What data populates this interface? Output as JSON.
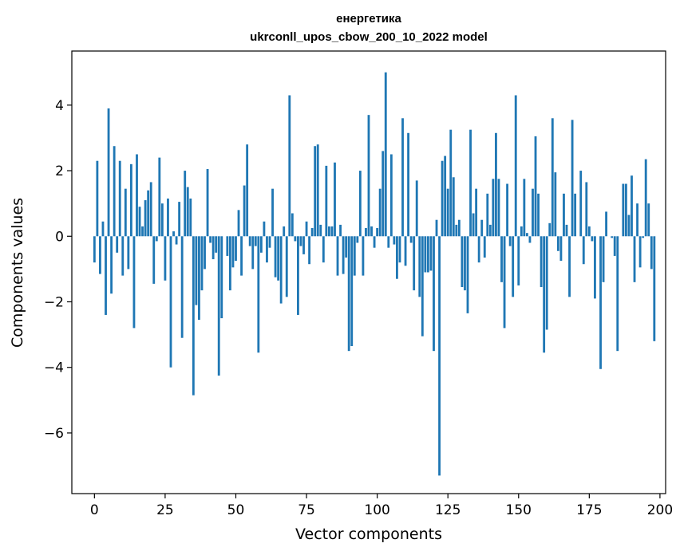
{
  "chart_data": {
    "type": "bar",
    "title_line1": "енергетика",
    "title_line2": "ukrconll_upos_cbow_200_10_2022 model",
    "xlabel": "Vector components",
    "ylabel": "Components values",
    "xlim": [
      -8,
      202
    ],
    "ylim": [
      -7.85,
      5.65
    ],
    "xticks": [
      0,
      25,
      50,
      75,
      100,
      125,
      150,
      175,
      200
    ],
    "yticks": [
      -6,
      -4,
      -2,
      0,
      2,
      4
    ],
    "ytick_labels": [
      "−6",
      "−4",
      "−2",
      "0",
      "2",
      "4"
    ],
    "bar_color": "#1f77b4",
    "values": [
      -0.8,
      2.3,
      -1.15,
      0.45,
      -2.4,
      3.9,
      -1.75,
      2.75,
      -0.5,
      2.3,
      -1.2,
      1.45,
      -1.0,
      2.2,
      -2.8,
      2.5,
      0.9,
      0.3,
      1.1,
      1.4,
      1.65,
      -1.45,
      -0.15,
      2.4,
      1.0,
      -1.35,
      1.15,
      -4.0,
      0.15,
      -0.25,
      1.05,
      -3.1,
      2.0,
      1.5,
      1.15,
      -4.85,
      -2.1,
      -2.55,
      -1.65,
      -1.0,
      2.05,
      -0.2,
      -0.7,
      -0.5,
      -4.25,
      -2.5,
      0.0,
      -0.6,
      -1.65,
      -0.95,
      -0.75,
      0.8,
      -1.2,
      1.55,
      2.8,
      -0.3,
      -1.0,
      -0.3,
      -3.55,
      -0.5,
      0.45,
      -0.8,
      -0.35,
      1.45,
      -1.25,
      -1.35,
      -2.05,
      0.3,
      -1.85,
      4.3,
      0.7,
      -0.15,
      -2.4,
      -0.3,
      -0.55,
      0.45,
      -0.85,
      0.25,
      2.75,
      2.8,
      0.35,
      -0.8,
      2.15,
      0.3,
      0.3,
      2.25,
      -1.2,
      0.35,
      -1.15,
      -0.65,
      -3.5,
      -3.35,
      -1.2,
      -0.2,
      2.0,
      -1.2,
      0.25,
      3.7,
      0.3,
      -0.35,
      0.25,
      1.45,
      2.6,
      5.0,
      -0.35,
      2.5,
      -0.25,
      -1.3,
      -0.8,
      3.6,
      -0.9,
      3.15,
      -0.2,
      -1.65,
      1.7,
      -1.85,
      -3.05,
      -1.1,
      -1.1,
      -1.05,
      -3.5,
      0.5,
      -7.3,
      2.3,
      2.45,
      1.45,
      3.25,
      1.8,
      0.35,
      0.5,
      -1.55,
      -1.65,
      -2.35,
      3.25,
      0.7,
      1.45,
      -0.8,
      0.5,
      -0.65,
      1.3,
      0.35,
      1.75,
      3.15,
      1.75,
      -1.4,
      -2.8,
      1.6,
      -0.3,
      -1.85,
      4.3,
      -1.5,
      0.3,
      1.75,
      0.1,
      -0.2,
      1.45,
      3.05,
      1.3,
      -1.55,
      -3.55,
      -2.85,
      0.4,
      3.6,
      1.95,
      -0.45,
      -0.75,
      1.3,
      0.35,
      -1.85,
      3.55,
      1.3,
      0.0,
      2.0,
      -0.85,
      1.65,
      0.3,
      -0.15,
      -1.9,
      0.0,
      -4.05,
      -1.4,
      0.75,
      0.0,
      -0.05,
      -0.6,
      -3.5,
      0.0,
      1.6,
      1.6,
      0.65,
      1.85,
      -1.4,
      1.0,
      -0.95,
      -0.05,
      2.35,
      1.0,
      -1.0,
      -3.2,
      0.0
    ]
  }
}
